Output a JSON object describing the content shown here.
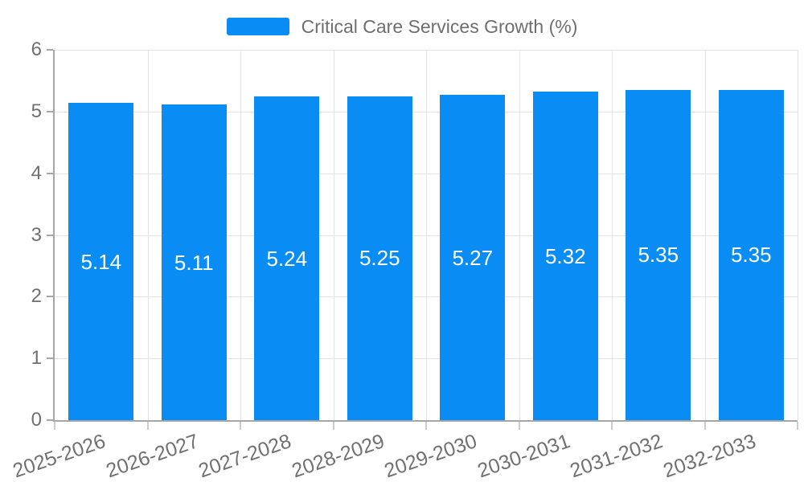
{
  "legend": {
    "label": "Critical Care Services Growth (%)"
  },
  "colors": {
    "background": "#ffffff",
    "bar": "#0a8cf5",
    "value_label": "#ffffff",
    "axis_line": "#a6a6a6",
    "grid_line": "#e3e3e3",
    "x_tick": "#cccccc",
    "axis_text": "#707070",
    "legend_text": "#6e6e6e"
  },
  "chart_data": {
    "type": "bar",
    "title": "Critical Care Services Growth (%)",
    "categories": [
      "2025-2026",
      "2026-2027",
      "2027-2028",
      "2028-2029",
      "2029-2030",
      "2030-2031",
      "2031-2032",
      "2032-2033"
    ],
    "values": [
      5.14,
      5.11,
      5.24,
      5.25,
      5.27,
      5.32,
      5.35,
      5.35
    ],
    "value_labels": [
      "5.14",
      "5.11",
      "5.24",
      "5.25",
      "5.27",
      "5.32",
      "5.35",
      "5.35"
    ],
    "xlabel": "",
    "ylabel": "",
    "ylim": [
      0,
      6
    ],
    "ytick_step": 1,
    "ytick_labels": [
      "0",
      "1",
      "2",
      "3",
      "4",
      "5",
      "6"
    ],
    "grid": true,
    "legend_position": "top-center",
    "value_labels_inside_bars": true,
    "x_label_rotation_deg": -19
  }
}
